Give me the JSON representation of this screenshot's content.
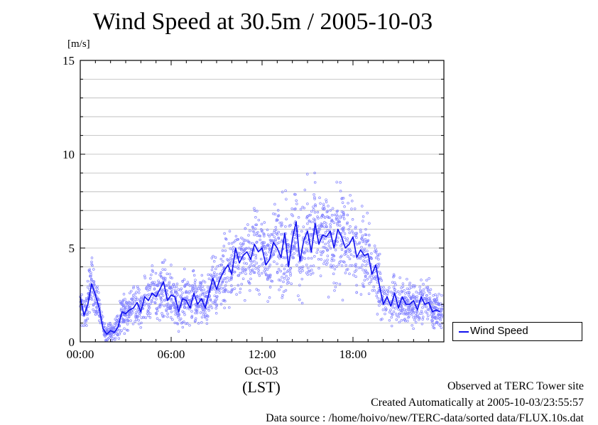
{
  "chart_data": {
    "type": "line+scatter",
    "title": "Wind Speed at 30.5m / 2005-10-03",
    "ylabel": "[m/s]",
    "ylim": [
      0,
      15
    ],
    "xlim": [
      0,
      24
    ],
    "y_ticks": [
      "0",
      "5",
      "10",
      "15"
    ],
    "x_ticks": [
      {
        "value": 0,
        "label": "00:00"
      },
      {
        "value": 6,
        "label": "06:00"
      },
      {
        "value": 12,
        "label": "12:00"
      },
      {
        "value": 18,
        "label": "18:00"
      }
    ],
    "x_sublabel_date": "Oct-03",
    "x_sublabel_tz": "(LST)",
    "grid": "horizontal",
    "legend_position": "right",
    "series": [
      {
        "name": "Wind Speed",
        "color": "#1010ee",
        "scatter_color": "#8080ff",
        "x_hours": [
          0.0,
          0.25,
          0.5,
          0.75,
          1.0,
          1.25,
          1.5,
          1.75,
          2.0,
          2.25,
          2.5,
          2.75,
          3.0,
          3.25,
          3.5,
          3.75,
          4.0,
          4.25,
          4.5,
          4.75,
          5.0,
          5.25,
          5.5,
          5.75,
          6.0,
          6.25,
          6.5,
          6.75,
          7.0,
          7.25,
          7.5,
          7.75,
          8.0,
          8.25,
          8.5,
          8.75,
          9.0,
          9.25,
          9.5,
          9.75,
          10.0,
          10.25,
          10.5,
          10.75,
          11.0,
          11.25,
          11.5,
          11.75,
          12.0,
          12.25,
          12.5,
          12.75,
          13.0,
          13.25,
          13.5,
          13.75,
          14.0,
          14.25,
          14.5,
          14.75,
          15.0,
          15.25,
          15.5,
          15.75,
          16.0,
          16.25,
          16.5,
          16.75,
          17.0,
          17.25,
          17.5,
          17.75,
          18.0,
          18.25,
          18.5,
          18.75,
          19.0,
          19.25,
          19.5,
          19.75,
          20.0,
          20.25,
          20.5,
          20.75,
          21.0,
          21.25,
          21.5,
          21.75,
          22.0,
          22.25,
          22.5,
          22.75,
          23.0,
          23.25,
          23.5,
          23.75
        ],
        "values": [
          2.4,
          1.4,
          2.0,
          3.1,
          2.5,
          1.8,
          0.7,
          0.4,
          0.6,
          0.5,
          0.8,
          1.6,
          1.5,
          1.7,
          1.8,
          2.1,
          1.6,
          2.4,
          2.2,
          2.6,
          2.4,
          2.8,
          3.2,
          2.2,
          2.5,
          2.4,
          1.6,
          2.3,
          2.2,
          1.8,
          2.6,
          2.0,
          2.3,
          1.8,
          2.6,
          3.4,
          2.8,
          3.4,
          3.8,
          4.1,
          3.6,
          5.0,
          4.2,
          4.6,
          4.8,
          4.4,
          5.2,
          4.8,
          5.0,
          4.1,
          4.4,
          5.3,
          5.0,
          4.5,
          5.8,
          4.0,
          5.5,
          6.4,
          4.3,
          5.4,
          5.9,
          4.8,
          6.3,
          5.2,
          5.7,
          5.6,
          5.9,
          5.0,
          6.0,
          5.6,
          5.0,
          5.2,
          5.6,
          4.5,
          4.9,
          4.6,
          4.7,
          3.6,
          4.1,
          3.0,
          2.0,
          2.4,
          1.9,
          2.6,
          1.8,
          2.4,
          2.0,
          2.0,
          2.2,
          1.7,
          2.4,
          2.0,
          2.1,
          1.6,
          1.7,
          1.6
        ]
      }
    ],
    "legend": {
      "label": "Wind Speed"
    }
  },
  "footer": {
    "observed": "Observed at TERC Tower site",
    "created": "Created Automatically at 2005-10-03/23:55:57",
    "source": "Data source : /home/hoivo/new/TERC-data/sorted  data/FLUX.10s.dat"
  }
}
